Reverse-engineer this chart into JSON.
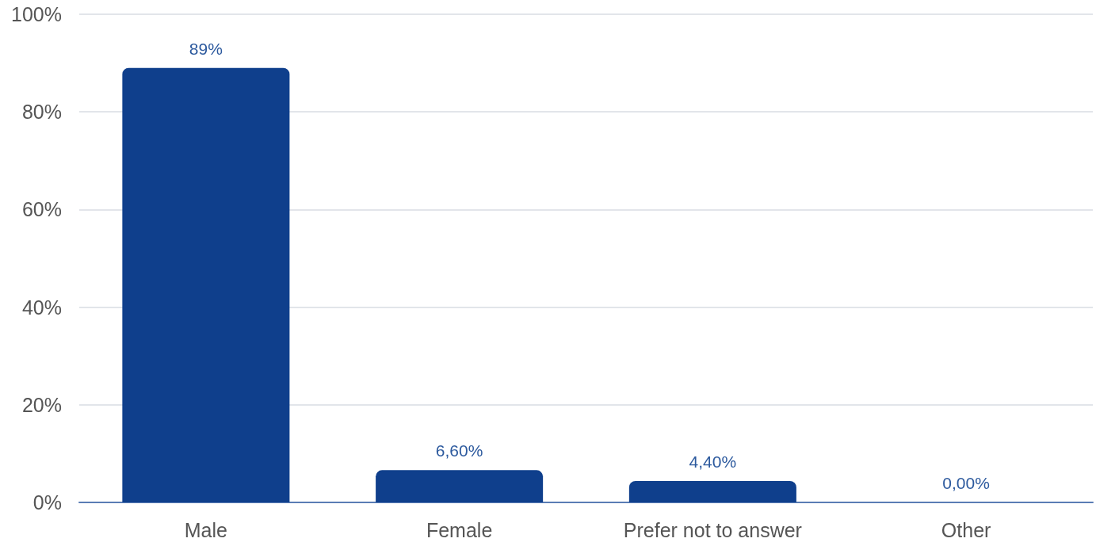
{
  "chart_data": {
    "type": "bar",
    "categories": [
      "Male",
      "Female",
      "Prefer not to answer",
      "Other"
    ],
    "values": [
      89,
      6.6,
      4.4,
      0
    ],
    "value_labels": [
      "89%",
      "6,60%",
      "4,40%",
      "0,00%"
    ],
    "color": "#0f3f8c",
    "ylim": [
      0,
      100
    ],
    "yticks": [
      {
        "value": 0,
        "label": "0%"
      },
      {
        "value": 20,
        "label": "20%"
      },
      {
        "value": 40,
        "label": "40%"
      },
      {
        "value": 60,
        "label": "60%"
      },
      {
        "value": 80,
        "label": "80%"
      },
      {
        "value": 100,
        "label": "100%"
      }
    ],
    "grid": "y"
  }
}
